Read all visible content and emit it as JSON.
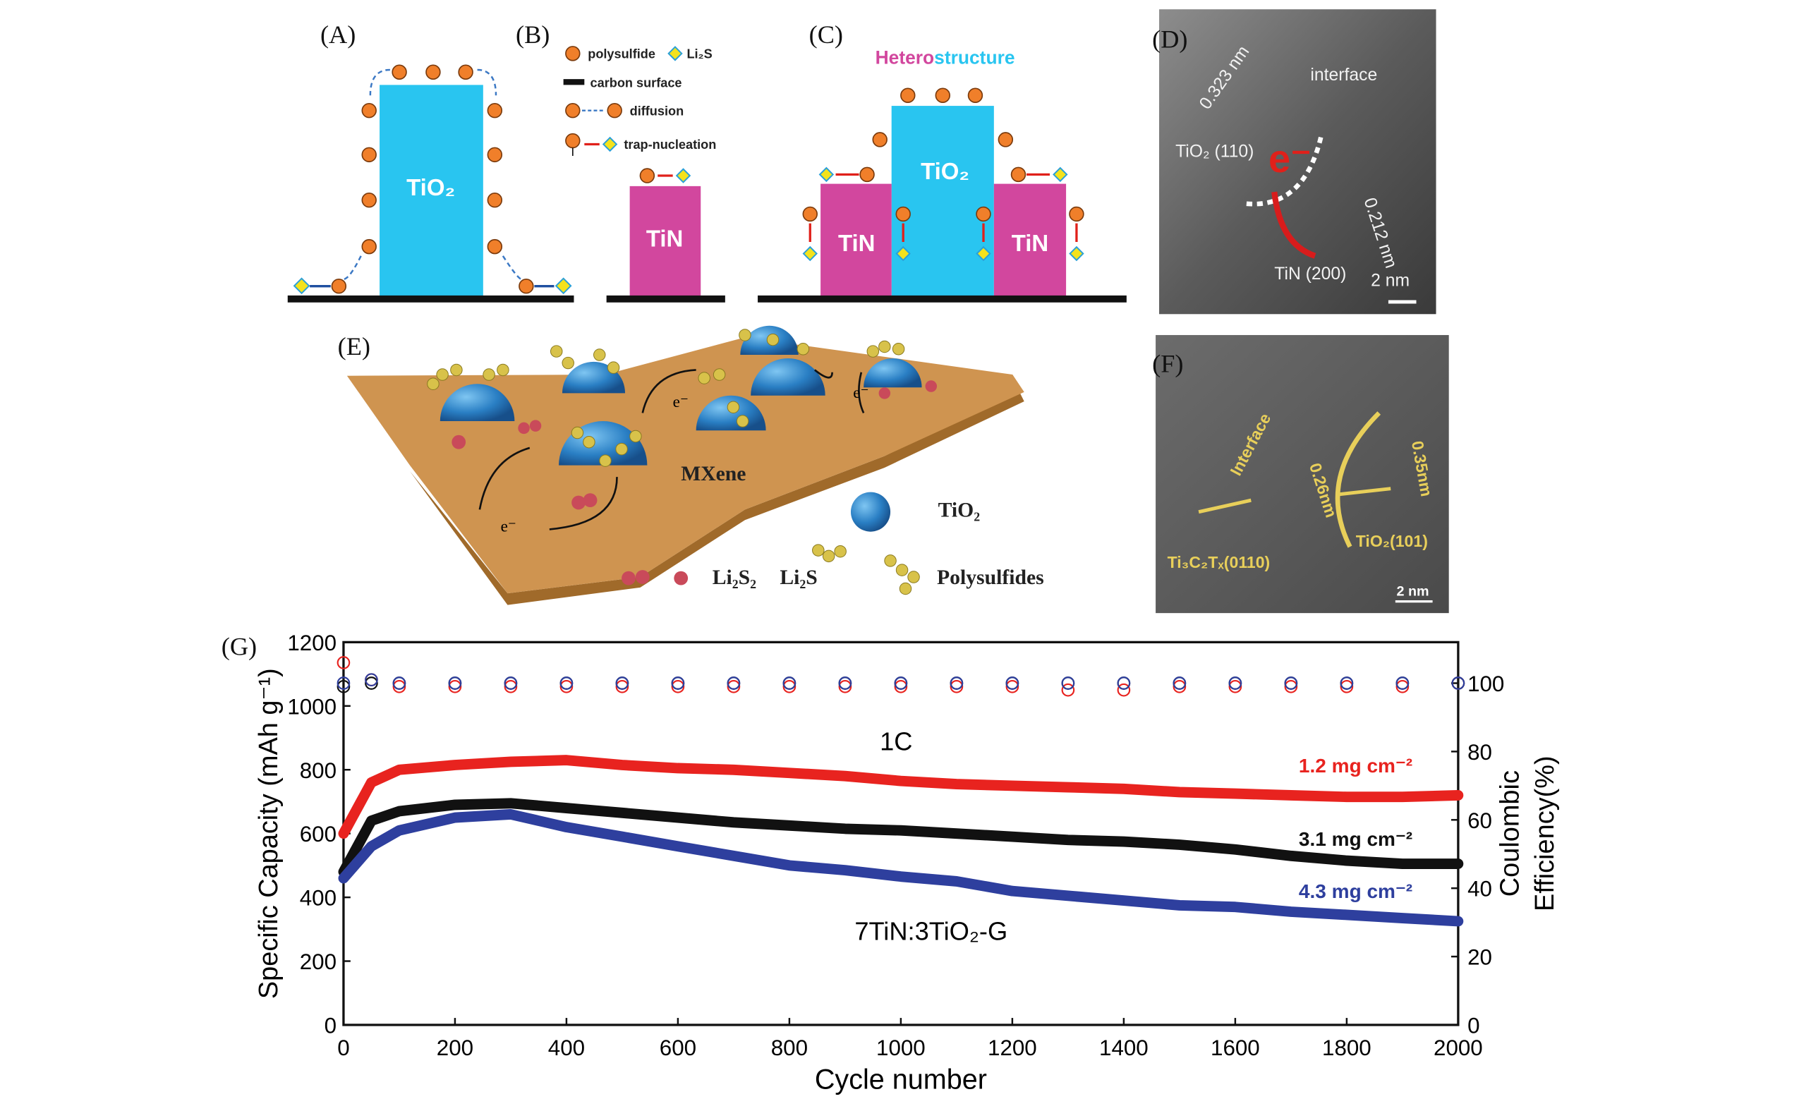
{
  "panels": {
    "A": {
      "label": "(A)",
      "box": "TiO₂"
    },
    "B": {
      "label": "(B)",
      "legend": [
        "polysulfide",
        "Li₂S",
        "carbon surface",
        "diffusion",
        "trap-nucleation"
      ],
      "box": "TiN"
    },
    "C": {
      "label": "(C)",
      "title_a": "Hetero",
      "title_b": "structure",
      "center": "TiO₂",
      "left": "TiN",
      "right": "TiN"
    },
    "D": {
      "label": "(D)",
      "texts": [
        "0.323 nm",
        "interface",
        "TiO₂ (110)",
        "e⁻",
        "0.212 nm",
        "TiN (200)",
        "2 nm"
      ]
    },
    "E": {
      "label": "(E)",
      "mxene": "MXene",
      "electrons": [
        "e⁻",
        "e⁻",
        "e⁻"
      ],
      "tio2": "TiO₂",
      "legend": [
        "Li₂S₂",
        "Li₂S",
        "Polysulfides"
      ]
    },
    "F": {
      "label": "(F)",
      "texts": [
        "Interface",
        "0.26nm",
        "0.35nm",
        "Ti₃C₂Tₓ(0110)",
        "TiO₂(101)",
        "2 nm"
      ]
    }
  },
  "chart_data": {
    "type": "line",
    "panel_label": "(G)",
    "xlabel": "Cycle number",
    "ylabel": "Specific Capacity (mAh g⁻¹)",
    "y2label": [
      "Coulombic",
      "Efficiency(%)"
    ],
    "annotations": [
      "1C",
      "7TiN:3TiO₂-G"
    ],
    "x": [
      0,
      50,
      100,
      200,
      300,
      400,
      500,
      600,
      700,
      800,
      900,
      1000,
      1100,
      1200,
      1300,
      1400,
      1500,
      1600,
      1700,
      1800,
      1900,
      2000
    ],
    "xlim": [
      0,
      2000
    ],
    "xticks": [
      0,
      200,
      400,
      600,
      800,
      1000,
      1200,
      1400,
      1600,
      1800,
      2000
    ],
    "ylim": [
      0,
      1200
    ],
    "yticks": [
      0,
      200,
      400,
      600,
      800,
      1000,
      1200
    ],
    "y2lim": [
      0,
      112
    ],
    "y2ticks": [
      0,
      20,
      40,
      60,
      80,
      100
    ],
    "series": [
      {
        "name": "1.2 mg cm⁻²",
        "color": "#e8231f",
        "values": [
          600,
          760,
          800,
          815,
          825,
          830,
          815,
          805,
          800,
          790,
          780,
          765,
          755,
          750,
          745,
          740,
          730,
          725,
          720,
          715,
          715,
          720
        ]
      },
      {
        "name": "3.1 mg cm⁻²",
        "color": "#111111",
        "values": [
          480,
          640,
          670,
          690,
          695,
          680,
          665,
          650,
          635,
          625,
          615,
          610,
          600,
          590,
          580,
          575,
          565,
          550,
          530,
          515,
          505,
          505
        ]
      },
      {
        "name": "4.3 mg cm⁻²",
        "color": "#2e3f9e",
        "values": [
          460,
          560,
          610,
          650,
          660,
          620,
          590,
          560,
          530,
          500,
          485,
          465,
          450,
          420,
          405,
          390,
          375,
          370,
          355,
          345,
          335,
          325
        ]
      },
      {
        "color": "#e8231f",
        "axis": "y2",
        "values": [
          106,
          101,
          99,
          99,
          99,
          99,
          99,
          99,
          99,
          99,
          99,
          99,
          99,
          99,
          98,
          98,
          99,
          99,
          99,
          99,
          99,
          100
        ]
      },
      {
        "color": "#111111",
        "axis": "y2",
        "values": [
          99,
          100,
          100,
          100,
          100,
          100,
          100,
          100,
          100,
          100,
          100,
          100,
          100,
          100,
          100,
          100,
          100,
          100,
          100,
          100,
          100,
          100
        ]
      },
      {
        "color": "#2e3f9e",
        "axis": "y2",
        "values": [
          100,
          101,
          100,
          100,
          100,
          100,
          100,
          100,
          100,
          100,
          100,
          100,
          100,
          100,
          100,
          100,
          100,
          100,
          100,
          100,
          100,
          100
        ]
      }
    ]
  }
}
